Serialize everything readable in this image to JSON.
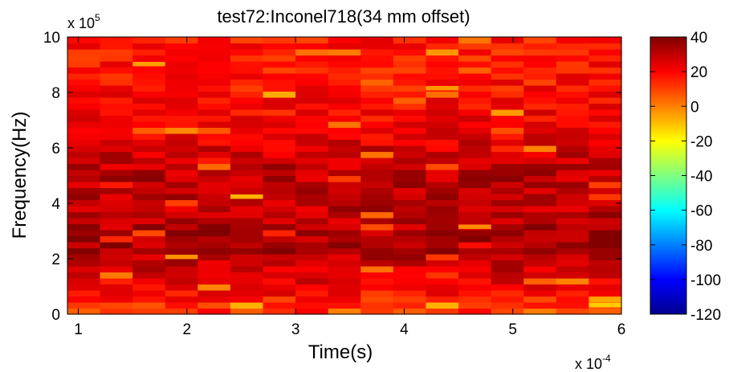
{
  "chart_data": {
    "type": "heatmap",
    "title": "test72:Inconel718(34 mm offset)",
    "xlabel": "Time(s)",
    "ylabel": "Frequency(Hz)",
    "x_exponent_label": "x 10",
    "x_exponent_power": "-4",
    "y_exponent_label": "x 10",
    "y_exponent_power": "5",
    "xlim": [
      0.9,
      6.0
    ],
    "ylim": [
      0,
      10
    ],
    "x_ticks": [
      1,
      2,
      3,
      4,
      5,
      6
    ],
    "x_tick_labels": [
      "1",
      "2",
      "3",
      "4",
      "5",
      "6"
    ],
    "y_ticks": [
      0,
      2,
      4,
      6,
      8,
      10
    ],
    "y_tick_labels": [
      "0",
      "2",
      "4",
      "6",
      "8",
      "10"
    ],
    "colorbar": {
      "range": [
        -120,
        40
      ],
      "ticks": [
        40,
        20,
        0,
        -20,
        -40,
        -60,
        -80,
        -100,
        -120
      ],
      "tick_labels": [
        "40",
        "20",
        "0",
        "-20",
        "-40",
        "-60",
        "-80",
        "-100",
        "-120"
      ],
      "colormap": "jet"
    },
    "n_time_columns": 17,
    "n_freq_rows": 46,
    "level_profile_db_vs_frequency": {
      "frequency_x1e5_Hz": [
        0,
        0.5,
        1,
        1.5,
        2,
        2.5,
        3,
        3.5,
        4,
        4.5,
        5,
        5.5,
        6,
        6.5,
        7,
        7.5,
        8,
        8.5,
        9,
        9.5,
        10
      ],
      "level_db": [
        12,
        16,
        21,
        26,
        31,
        34,
        33,
        30,
        30,
        31,
        31,
        29,
        26,
        23,
        21,
        19,
        18,
        17,
        17,
        16,
        17
      ]
    },
    "highlight_cells": [
      {
        "time_x1e-4_s": 2.6,
        "frequency_x1e5_Hz": 4.25,
        "level_db": -8
      },
      {
        "time_x1e-4_s": 5.9,
        "frequency_x1e5_Hz": 0.35,
        "level_db": -12
      },
      {
        "time_x1e-4_s": 1.6,
        "frequency_x1e5_Hz": 8.95,
        "level_db": -5
      },
      {
        "time_x1e-4_s": 4.3,
        "frequency_x1e5_Hz": 8.2,
        "level_db": -4
      },
      {
        "time_x1e-4_s": 4.6,
        "frequency_x1e5_Hz": 3.25,
        "level_db": -2
      },
      {
        "time_x1e-4_s": 2.0,
        "frequency_x1e5_Hz": 2.1,
        "level_db": -3
      }
    ]
  }
}
